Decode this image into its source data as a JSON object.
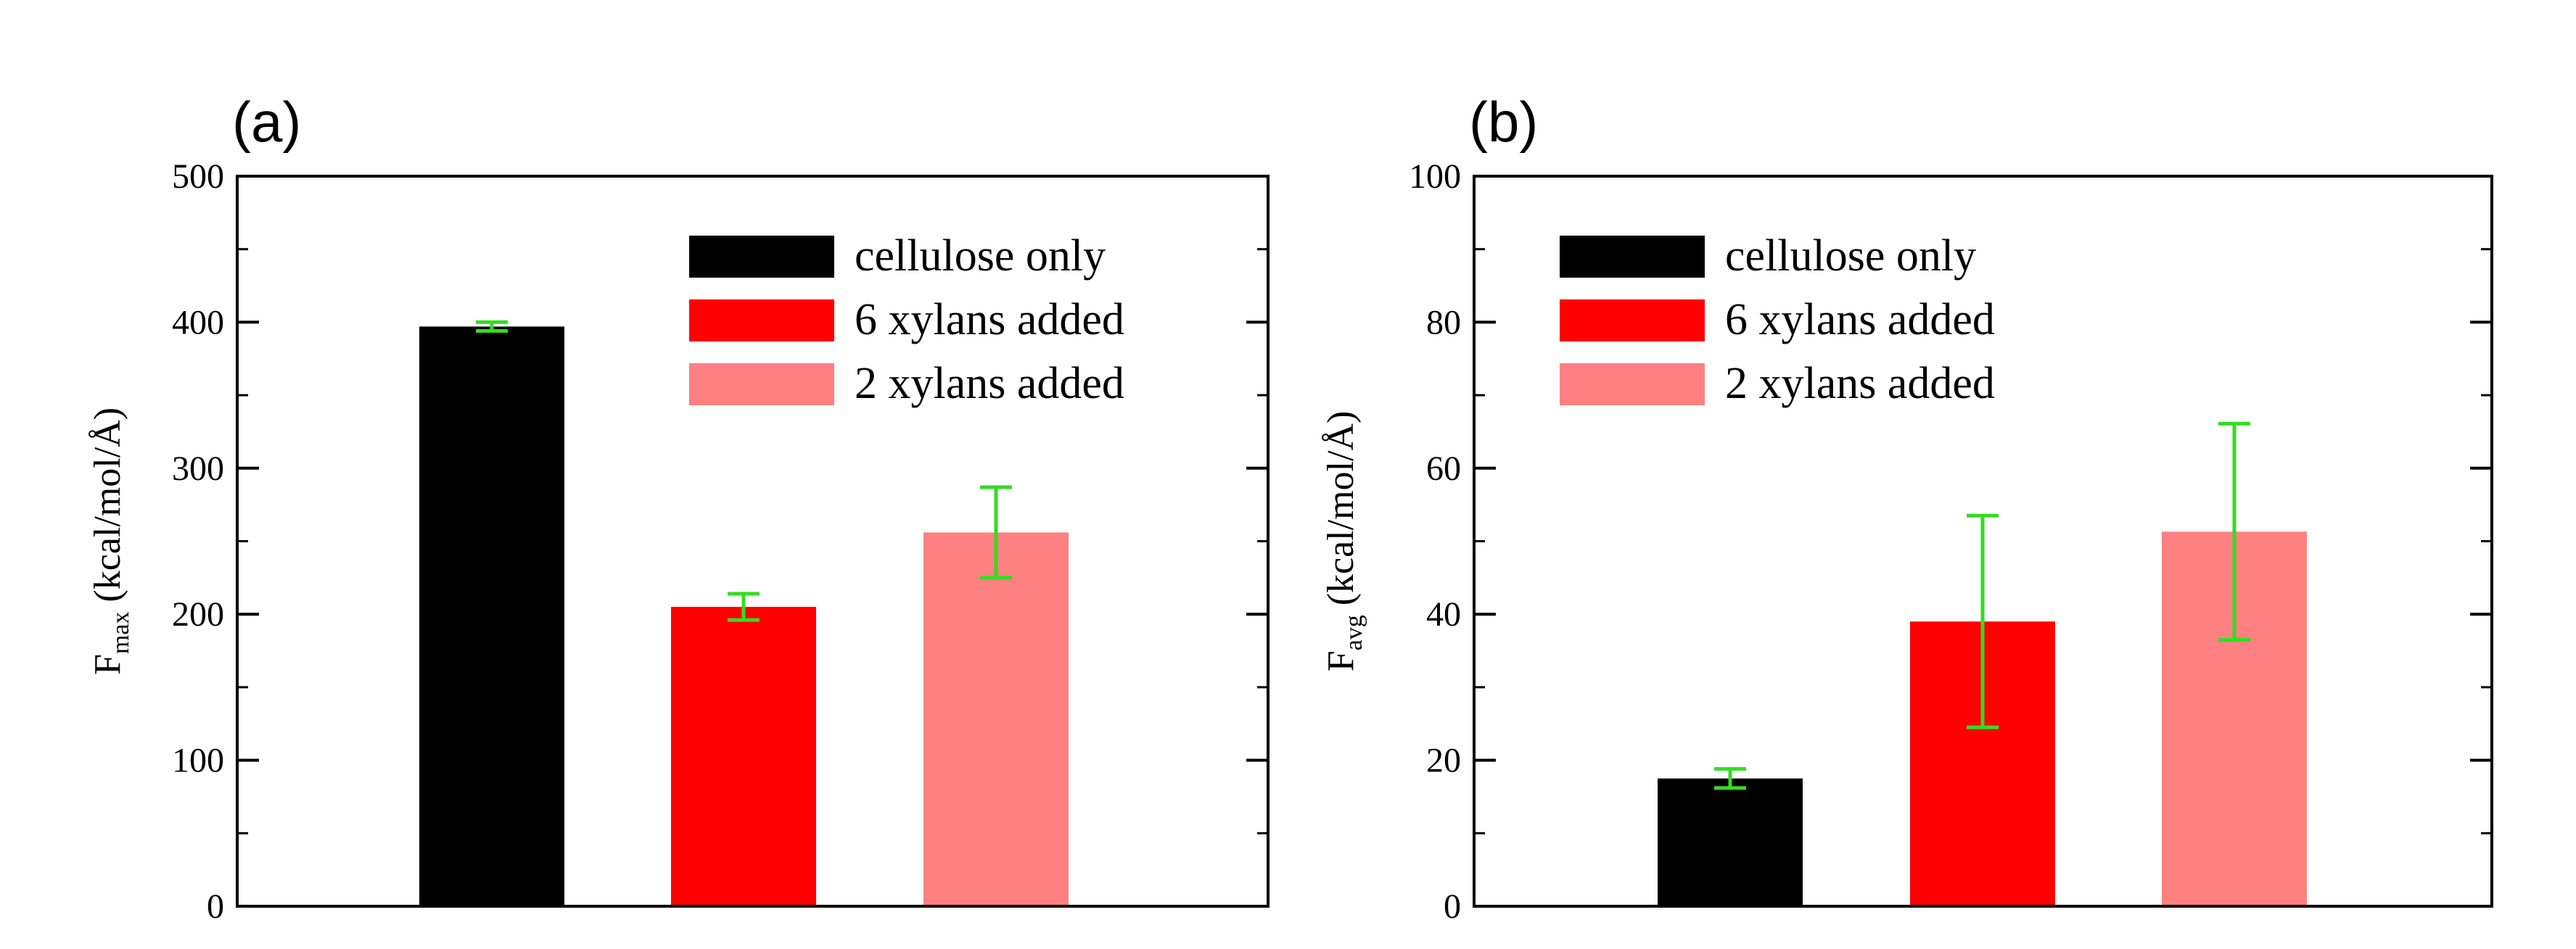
{
  "chart_data": [
    {
      "type": "bar",
      "panel_label": "(a)",
      "ylabel_main": "F",
      "ylabel_subscript": "max",
      "ylabel_unit": " (kcal/mol/Å)",
      "xlabel": "",
      "ylim": [
        0,
        500
      ],
      "yticks": [
        0,
        100,
        200,
        300,
        400,
        500
      ],
      "categories": [
        "cellulose only",
        "6 xylans added",
        "2 xylans added"
      ],
      "values": [
        397,
        205,
        256
      ],
      "errors": [
        3,
        9,
        31
      ],
      "colors": [
        "#000000",
        "#ff0000",
        "#ff8080"
      ],
      "error_bar_color": "#33dd22",
      "legend": {
        "position": "top-right",
        "entries": [
          "cellulose only",
          "6 xylans added",
          "2 xylans added"
        ]
      }
    },
    {
      "type": "bar",
      "panel_label": "(b)",
      "ylabel_main": "F",
      "ylabel_subscript": "avg",
      "ylabel_unit": " (kcal/mol/Å)",
      "xlabel": "",
      "ylim": [
        0,
        100
      ],
      "yticks": [
        0,
        20,
        40,
        60,
        80,
        100
      ],
      "categories": [
        "cellulose only",
        "6 xylans added",
        "2 xylans added"
      ],
      "values": [
        17.5,
        39,
        51.3
      ],
      "errors": [
        1.3,
        14.5,
        14.8
      ],
      "colors": [
        "#000000",
        "#ff0000",
        "#ff8080"
      ],
      "error_bar_color": "#33dd22",
      "legend": {
        "position": "top-left",
        "entries": [
          "cellulose only",
          "6 xylans added",
          "2 xylans added"
        ]
      }
    }
  ]
}
